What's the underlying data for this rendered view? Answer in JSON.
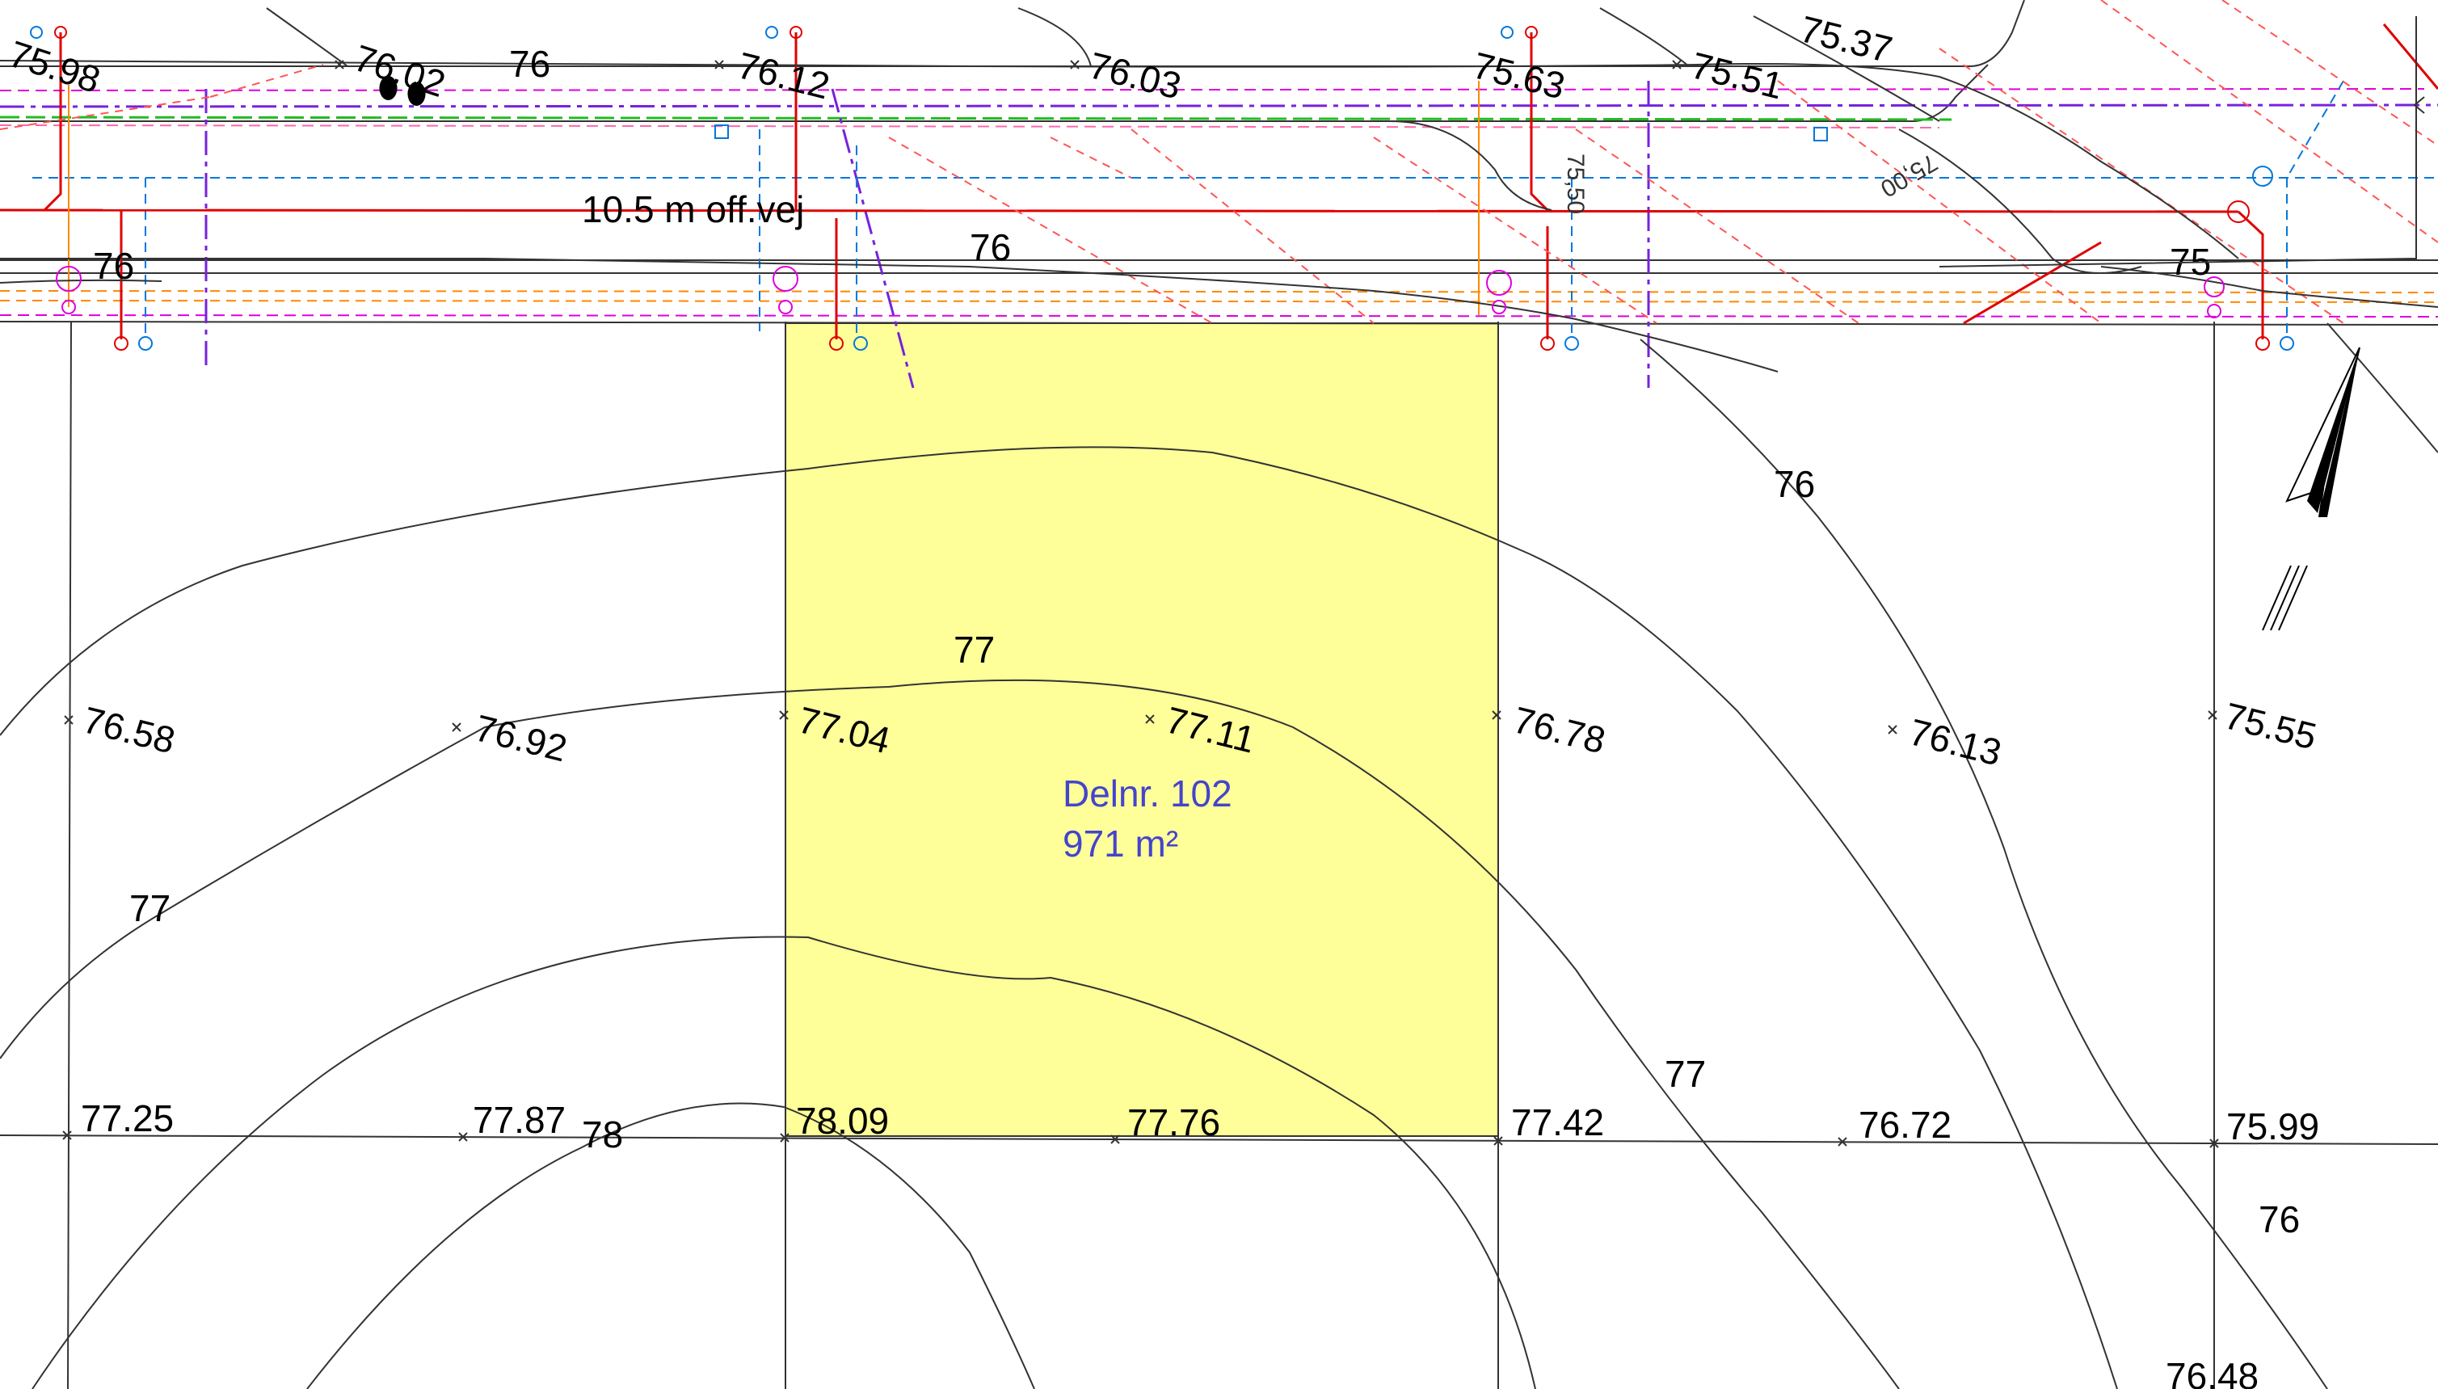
{
  "colors": {
    "plot_fill": "#ffff99",
    "plot_label": "#4444cc",
    "contour": "#333333",
    "utility_red": "#e00000",
    "utility_blue": "#0077dd",
    "utility_magenta": "#dd00dd",
    "utility_purple": "#7722dd",
    "utility_orange": "#ff8800",
    "utility_green": "#22bb22"
  },
  "plot": {
    "label": "Delnr. 102",
    "area": "971 m²"
  },
  "road": {
    "label": "10.5 m off.vej",
    "elevation_marker_a": "75,50",
    "elevation_marker_b": "75,00"
  },
  "spot_heights": {
    "h1": "75.98",
    "h2": "76.12",
    "h3": "76.03",
    "h4": "75.63",
    "h5": "75.51",
    "h6": "75.37",
    "h7": "76.58",
    "h8": "76.92",
    "h9": "77.04",
    "h10": "77.11",
    "h11": "76.78",
    "h12": "76.13",
    "h13": "75.55",
    "h14": "77.25",
    "h15": "77.87",
    "h16": "78.09",
    "h17": "77.76",
    "h18": "77.42",
    "h19": "76.72",
    "h20": "75.99",
    "h21": "76.48"
  },
  "contour_labels": {
    "c1": "76",
    "c2": "76.02",
    "c3": "76",
    "c4": "76",
    "c5": "76",
    "c6": "75",
    "c7": "76",
    "c8": "77",
    "c9": "77",
    "c10": "78",
    "c11": "77",
    "c12": "76"
  },
  "icons": {
    "north_arrow": "north-arrow-icon"
  }
}
